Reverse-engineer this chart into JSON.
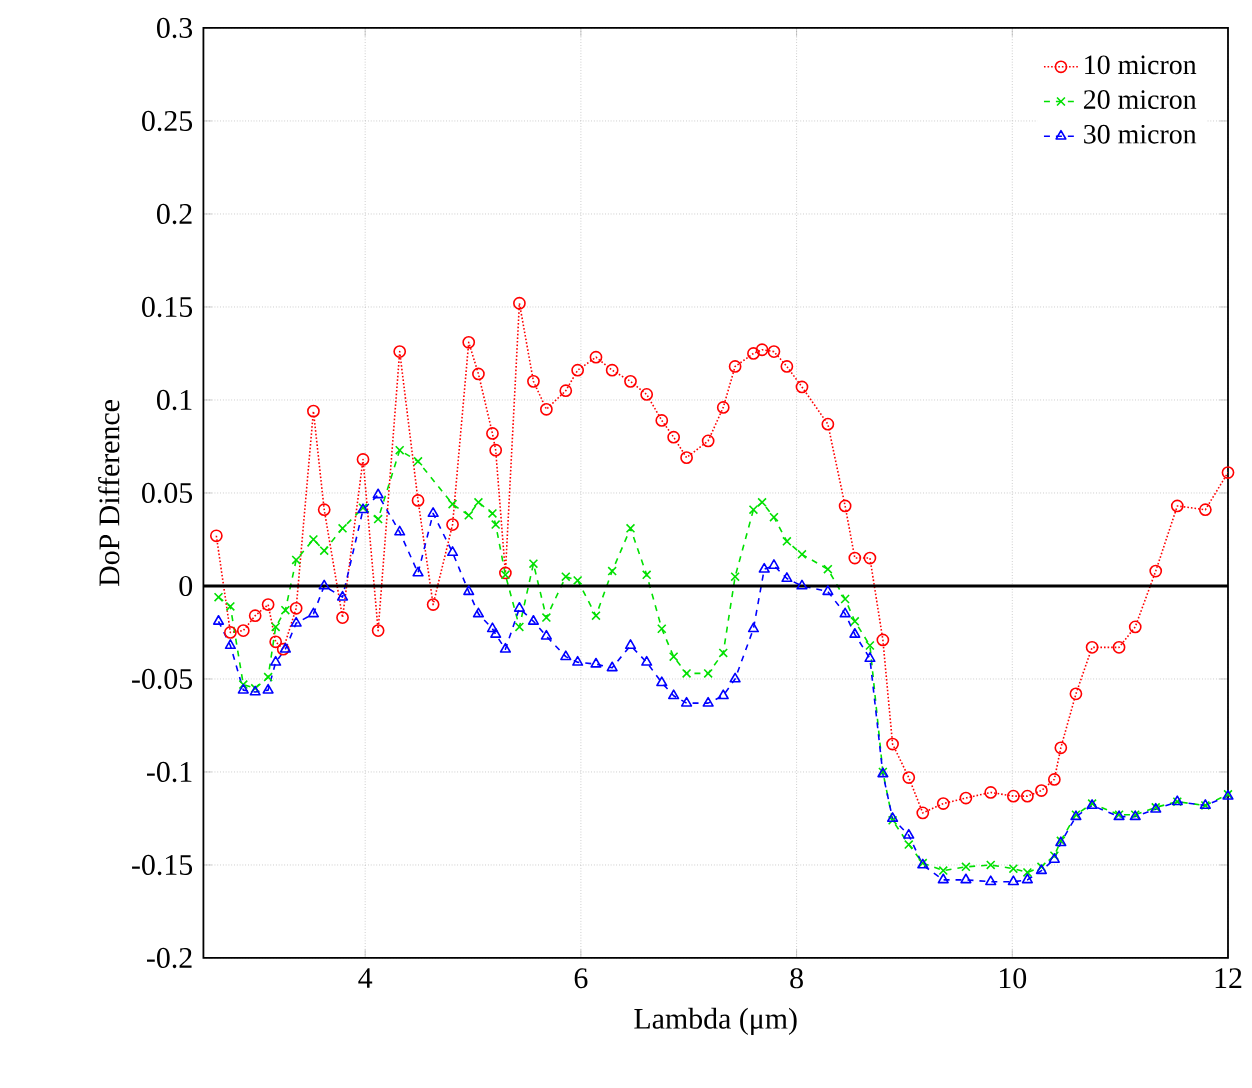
{
  "chart_data": {
    "type": "line",
    "xlabel": "Lambda (μm)",
    "ylabel": "DoP Difference",
    "xlim": [
      2.5,
      12
    ],
    "ylim": [
      -0.2,
      0.3
    ],
    "xticks": [
      4,
      6,
      8,
      10,
      12
    ],
    "yticks": [
      -0.2,
      -0.15,
      -0.1,
      -0.05,
      0,
      0.05,
      0.1,
      0.15,
      0.2,
      0.25,
      0.3
    ],
    "grid": true,
    "legend": "top right",
    "ref_lines": [
      {
        "axis": "y",
        "value": 0,
        "color": "#000000",
        "line_style": "solid"
      }
    ],
    "series": [
      {
        "name": "10 micron",
        "color": "#ff0000",
        "marker": "circle",
        "line_style": "dotted",
        "x": [
          2.62,
          2.75,
          2.87,
          2.98,
          3.1,
          3.17,
          3.24,
          3.36,
          3.52,
          3.62,
          3.79,
          3.98,
          4.12,
          4.32,
          4.49,
          4.63,
          4.81,
          4.96,
          5.05,
          5.18,
          5.21,
          5.3,
          5.43,
          5.56,
          5.68,
          5.86,
          5.97,
          6.14,
          6.29,
          6.46,
          6.61,
          6.75,
          6.86,
          6.98,
          7.18,
          7.32,
          7.43,
          7.6,
          7.68,
          7.79,
          7.91,
          8.05,
          8.29,
          8.45,
          8.54,
          8.68,
          8.8,
          8.89,
          9.04,
          9.17,
          9.36,
          9.57,
          9.8,
          10.01,
          10.14,
          10.27,
          10.39,
          10.45,
          10.59,
          10.74,
          10.99,
          11.14,
          11.33,
          11.53,
          11.79,
          12.0
        ],
        "values": [
          0.027,
          -0.025,
          -0.024,
          -0.016,
          -0.01,
          -0.03,
          -0.034,
          -0.012,
          0.094,
          0.041,
          -0.017,
          0.068,
          -0.024,
          0.126,
          0.046,
          -0.01,
          0.033,
          0.131,
          0.114,
          0.082,
          0.073,
          0.007,
          0.152,
          0.11,
          0.095,
          0.105,
          0.116,
          0.123,
          0.116,
          0.11,
          0.103,
          0.089,
          0.08,
          0.069,
          0.078,
          0.096,
          0.118,
          0.125,
          0.127,
          0.126,
          0.118,
          0.107,
          0.087,
          0.043,
          0.015,
          0.015,
          -0.029,
          -0.085,
          -0.103,
          -0.122,
          -0.117,
          -0.114,
          -0.111,
          -0.113,
          -0.113,
          -0.11,
          -0.104,
          -0.087,
          -0.058,
          -0.033,
          -0.033,
          -0.022,
          0.008,
          0.043,
          0.041,
          0.061
        ]
      },
      {
        "name": "20 micron",
        "color": "#00e000",
        "marker": "cross",
        "line_style": "dashed",
        "x": [
          2.64,
          2.75,
          2.87,
          2.98,
          3.1,
          3.17,
          3.26,
          3.36,
          3.52,
          3.62,
          3.79,
          3.98,
          4.12,
          4.32,
          4.49,
          4.81,
          4.96,
          5.05,
          5.18,
          5.21,
          5.3,
          5.43,
          5.56,
          5.68,
          5.86,
          5.97,
          6.14,
          6.29,
          6.46,
          6.61,
          6.75,
          6.86,
          6.98,
          7.18,
          7.32,
          7.43,
          7.6,
          7.68,
          7.79,
          7.91,
          8.05,
          8.29,
          8.45,
          8.54,
          8.68,
          8.8,
          8.89,
          9.04,
          9.17,
          9.36,
          9.57,
          9.8,
          10.01,
          10.14,
          10.27,
          10.39,
          10.45,
          10.59,
          10.74,
          10.99,
          11.14,
          11.33,
          11.53,
          11.79,
          12.0
        ],
        "values": [
          -0.006,
          -0.011,
          -0.053,
          -0.055,
          -0.049,
          -0.022,
          -0.013,
          0.014,
          0.025,
          0.019,
          0.031,
          0.042,
          0.036,
          0.073,
          0.067,
          0.044,
          0.038,
          0.045,
          0.039,
          0.033,
          0.006,
          -0.022,
          0.012,
          -0.017,
          0.005,
          0.003,
          -0.016,
          0.008,
          0.031,
          0.006,
          -0.023,
          -0.038,
          -0.047,
          -0.047,
          -0.036,
          0.005,
          0.041,
          0.045,
          0.037,
          0.024,
          0.017,
          0.009,
          -0.007,
          -0.019,
          -0.032,
          -0.1,
          -0.126,
          -0.139,
          -0.149,
          -0.153,
          -0.151,
          -0.15,
          -0.152,
          -0.154,
          -0.151,
          -0.145,
          -0.137,
          -0.123,
          -0.117,
          -0.123,
          -0.123,
          -0.119,
          -0.116,
          -0.118,
          -0.112
        ]
      },
      {
        "name": "30 micron",
        "color": "#0000ff",
        "marker": "triangle",
        "line_style": "dashed",
        "x": [
          2.64,
          2.75,
          2.87,
          2.98,
          3.1,
          3.17,
          3.26,
          3.36,
          3.52,
          3.62,
          3.79,
          3.98,
          4.12,
          4.32,
          4.49,
          4.63,
          4.81,
          4.96,
          5.05,
          5.18,
          5.21,
          5.3,
          5.43,
          5.56,
          5.68,
          5.86,
          5.97,
          6.14,
          6.29,
          6.46,
          6.61,
          6.75,
          6.86,
          6.98,
          7.18,
          7.32,
          7.43,
          7.6,
          7.7,
          7.79,
          7.91,
          8.05,
          8.29,
          8.45,
          8.54,
          8.68,
          8.8,
          8.89,
          9.04,
          9.17,
          9.36,
          9.57,
          9.8,
          10.01,
          10.14,
          10.27,
          10.39,
          10.45,
          10.59,
          10.74,
          10.99,
          11.14,
          11.33,
          11.53,
          11.79,
          12.0
        ],
        "values": [
          -0.019,
          -0.032,
          -0.056,
          -0.057,
          -0.056,
          -0.041,
          -0.034,
          -0.02,
          -0.015,
          0.0,
          -0.006,
          0.041,
          0.049,
          0.029,
          0.007,
          0.039,
          0.018,
          -0.003,
          -0.015,
          -0.023,
          -0.026,
          -0.034,
          -0.012,
          -0.019,
          -0.027,
          -0.038,
          -0.041,
          -0.042,
          -0.044,
          -0.032,
          -0.041,
          -0.052,
          -0.059,
          -0.063,
          -0.063,
          -0.059,
          -0.05,
          -0.023,
          0.009,
          0.011,
          0.004,
          0.0,
          -0.003,
          -0.015,
          -0.026,
          -0.039,
          -0.101,
          -0.125,
          -0.134,
          -0.15,
          -0.158,
          -0.158,
          -0.159,
          -0.159,
          -0.158,
          -0.153,
          -0.147,
          -0.138,
          -0.124,
          -0.118,
          -0.124,
          -0.124,
          -0.12,
          -0.116,
          -0.118,
          -0.113
        ]
      }
    ]
  }
}
